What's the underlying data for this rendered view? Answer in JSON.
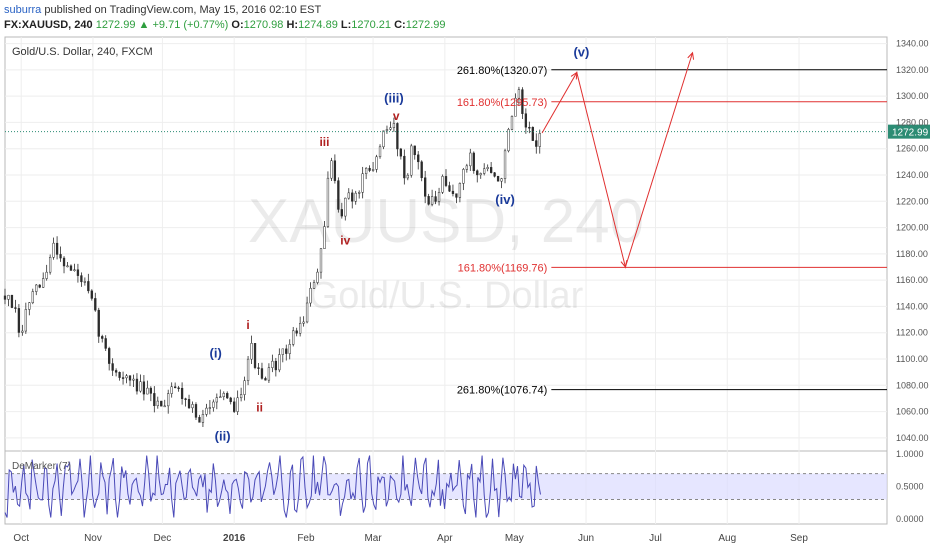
{
  "header": {
    "author": "suburra",
    "published": "published on TradingView.com, May 15, 2016 02:10 EST",
    "symbol": "FX:XAUUSD, 240",
    "last": "1272.99",
    "change": "+9.71 (+0.77%)",
    "ohlc": [
      {
        "label": "O:",
        "value": "1270.98"
      },
      {
        "label": "H:",
        "value": "1274.89"
      },
      {
        "label": "L:",
        "value": "1270.21"
      },
      {
        "label": "C:",
        "value": "1272.99"
      }
    ],
    "up_arrow": "▲"
  },
  "chart_data": {
    "type": "line",
    "title": "Gold/U.S. Dollar, 240, FXCM",
    "watermark": [
      "XAUUSD, 240",
      "Gold/U.S. Dollar"
    ],
    "ylim": [
      1030,
      1345
    ],
    "y_ticks": [
      "1040.00",
      "1060.00",
      "1080.00",
      "1100.00",
      "1120.00",
      "1140.00",
      "1160.00",
      "1180.00",
      "1200.00",
      "1220.00",
      "1240.00",
      "1260.00",
      "1280.00",
      "1300.00",
      "1320.00",
      "1340.00"
    ],
    "x_ticks": [
      {
        "label": "Oct",
        "date": "2015-10-01"
      },
      {
        "label": "Nov",
        "date": "2015-11-01"
      },
      {
        "label": "Dec",
        "date": "2015-12-01"
      },
      {
        "label": "2016",
        "date": "2016-01-01",
        "bold": true
      },
      {
        "label": "Feb",
        "date": "2016-02-01"
      },
      {
        "label": "Mar",
        "date": "2016-03-01"
      },
      {
        "label": "Apr",
        "date": "2016-04-01"
      },
      {
        "label": "May",
        "date": "2016-05-01"
      },
      {
        "label": "Jun",
        "date": "2016-06-01"
      },
      {
        "label": "Jul",
        "date": "2016-07-01"
      },
      {
        "label": "Aug",
        "date": "2016-08-01"
      },
      {
        "label": "Sep",
        "date": "2016-09-01"
      }
    ],
    "x_range": [
      "2015-09-24",
      "2016-10-09"
    ],
    "last_price": {
      "value": 1272.99,
      "label": "1272.99",
      "color": "#2c8c74"
    },
    "price_path": [
      [
        "2015-09-24",
        1148
      ],
      [
        "2015-09-28",
        1138
      ],
      [
        "2015-10-01",
        1112
      ],
      [
        "2015-10-03",
        1138
      ],
      [
        "2015-10-06",
        1148
      ],
      [
        "2015-10-09",
        1155
      ],
      [
        "2015-10-12",
        1165
      ],
      [
        "2015-10-15",
        1188
      ],
      [
        "2015-10-18",
        1178
      ],
      [
        "2015-10-21",
        1170
      ],
      [
        "2015-10-24",
        1166
      ],
      [
        "2015-10-28",
        1158
      ],
      [
        "2015-11-01",
        1140
      ],
      [
        "2015-11-04",
        1118
      ],
      [
        "2015-11-08",
        1098
      ],
      [
        "2015-11-12",
        1088
      ],
      [
        "2015-11-16",
        1084
      ],
      [
        "2015-11-20",
        1080
      ],
      [
        "2015-11-24",
        1074
      ],
      [
        "2015-11-28",
        1066
      ],
      [
        "2015-12-02",
        1068
      ],
      [
        "2015-12-05",
        1082
      ],
      [
        "2015-12-09",
        1074
      ],
      [
        "2015-12-13",
        1066
      ],
      [
        "2015-12-17",
        1050
      ],
      [
        "2015-12-20",
        1060
      ],
      [
        "2015-12-24",
        1076
      ],
      [
        "2015-12-28",
        1068
      ],
      [
        "2015-12-31",
        1062
      ],
      [
        "2016-01-03",
        1070
      ],
      [
        "2016-01-06",
        1092
      ],
      [
        "2016-01-08",
        1112
      ],
      [
        "2016-01-11",
        1090
      ],
      [
        "2016-01-14",
        1080
      ],
      [
        "2016-01-17",
        1094
      ],
      [
        "2016-01-20",
        1098
      ],
      [
        "2016-01-24",
        1108
      ],
      [
        "2016-01-27",
        1120
      ],
      [
        "2016-01-30",
        1126
      ],
      [
        "2016-02-03",
        1150
      ],
      [
        "2016-02-06",
        1168
      ],
      [
        "2016-02-09",
        1196
      ],
      [
        "2016-02-11",
        1250
      ],
      [
        "2016-02-13",
        1246
      ],
      [
        "2016-02-16",
        1205
      ],
      [
        "2016-02-19",
        1228
      ],
      [
        "2016-02-22",
        1220
      ],
      [
        "2016-02-26",
        1240
      ],
      [
        "2016-03-01",
        1242
      ],
      [
        "2016-03-04",
        1266
      ],
      [
        "2016-03-07",
        1272
      ],
      [
        "2016-03-10",
        1278
      ],
      [
        "2016-03-12",
        1260
      ],
      [
        "2016-03-15",
        1236
      ],
      [
        "2016-03-18",
        1262
      ],
      [
        "2016-03-21",
        1246
      ],
      [
        "2016-03-25",
        1218
      ],
      [
        "2016-03-28",
        1220
      ],
      [
        "2016-03-31",
        1234
      ],
      [
        "2016-04-03",
        1226
      ],
      [
        "2016-04-06",
        1226
      ],
      [
        "2016-04-09",
        1240
      ],
      [
        "2016-04-12",
        1256
      ],
      [
        "2016-04-15",
        1238
      ],
      [
        "2016-04-19",
        1248
      ],
      [
        "2016-04-22",
        1236
      ],
      [
        "2016-04-25",
        1236
      ],
      [
        "2016-04-28",
        1266
      ],
      [
        "2016-05-01",
        1292
      ],
      [
        "2016-05-03",
        1300
      ],
      [
        "2016-05-05",
        1278
      ],
      [
        "2016-05-08",
        1270
      ],
      [
        "2016-05-10",
        1264
      ],
      [
        "2016-05-13",
        1272
      ]
    ],
    "demarker": {
      "label": "DeMarker (7)",
      "ylim": [
        -0.08,
        1.05
      ],
      "y_ticks": [
        "0.0000",
        "0.5000",
        "1.0000"
      ],
      "levels": [
        0.3,
        0.7
      ]
    },
    "projection": [
      [
        "2016-05-13",
        1272
      ],
      [
        "2016-05-28",
        1318
      ],
      [
        "2016-06-18",
        1170
      ],
      [
        "2016-07-17",
        1333
      ]
    ],
    "fib_levels": [
      {
        "label": "261.80%(1320.07)",
        "value": 1320.07,
        "color": "#000000",
        "from": "2016-05-17"
      },
      {
        "label": "161.80%(1295.73)",
        "value": 1295.73,
        "color": "#e03030",
        "from": "2016-05-17"
      },
      {
        "label": "161.80%(1169.76)",
        "value": 1169.76,
        "color": "#e03030",
        "from": "2016-05-17"
      },
      {
        "label": "261.80%(1076.74)",
        "value": 1076.74,
        "color": "#000000",
        "from": "2016-05-17"
      }
    ],
    "wave_labels": [
      {
        "text": "(i)",
        "date": "2015-12-24",
        "value": 1101,
        "color": "#1a3a9a"
      },
      {
        "text": "(ii)",
        "date": "2015-12-27",
        "value": 1038,
        "color": "#1a3a9a"
      },
      {
        "text": "(iii)",
        "date": "2016-03-10",
        "value": 1295,
        "color": "#1a3a9a"
      },
      {
        "text": "(iv)",
        "date": "2016-04-27",
        "value": 1218,
        "color": "#1a3a9a"
      },
      {
        "text": "(v)",
        "date": "2016-05-30",
        "value": 1330,
        "color": "#1a3a9a"
      },
      {
        "text": "i",
        "date": "2016-01-07",
        "value": 1123,
        "color": "#b02020"
      },
      {
        "text": "ii",
        "date": "2016-01-12",
        "value": 1060,
        "color": "#b02020"
      },
      {
        "text": "iii",
        "date": "2016-02-09",
        "value": 1262,
        "color": "#b02020"
      },
      {
        "text": "iv",
        "date": "2016-02-18",
        "value": 1187,
        "color": "#b02020"
      },
      {
        "text": "v",
        "date": "2016-03-11",
        "value": 1282,
        "color": "#b02020"
      }
    ],
    "colors": {
      "candle": "#2b2b2b",
      "projection": "#e03030",
      "wave_primary": "#1a3a9a",
      "wave_minor": "#b02020",
      "indicator": "#4a4ab8",
      "indicator_band": "#dcdcff"
    }
  }
}
